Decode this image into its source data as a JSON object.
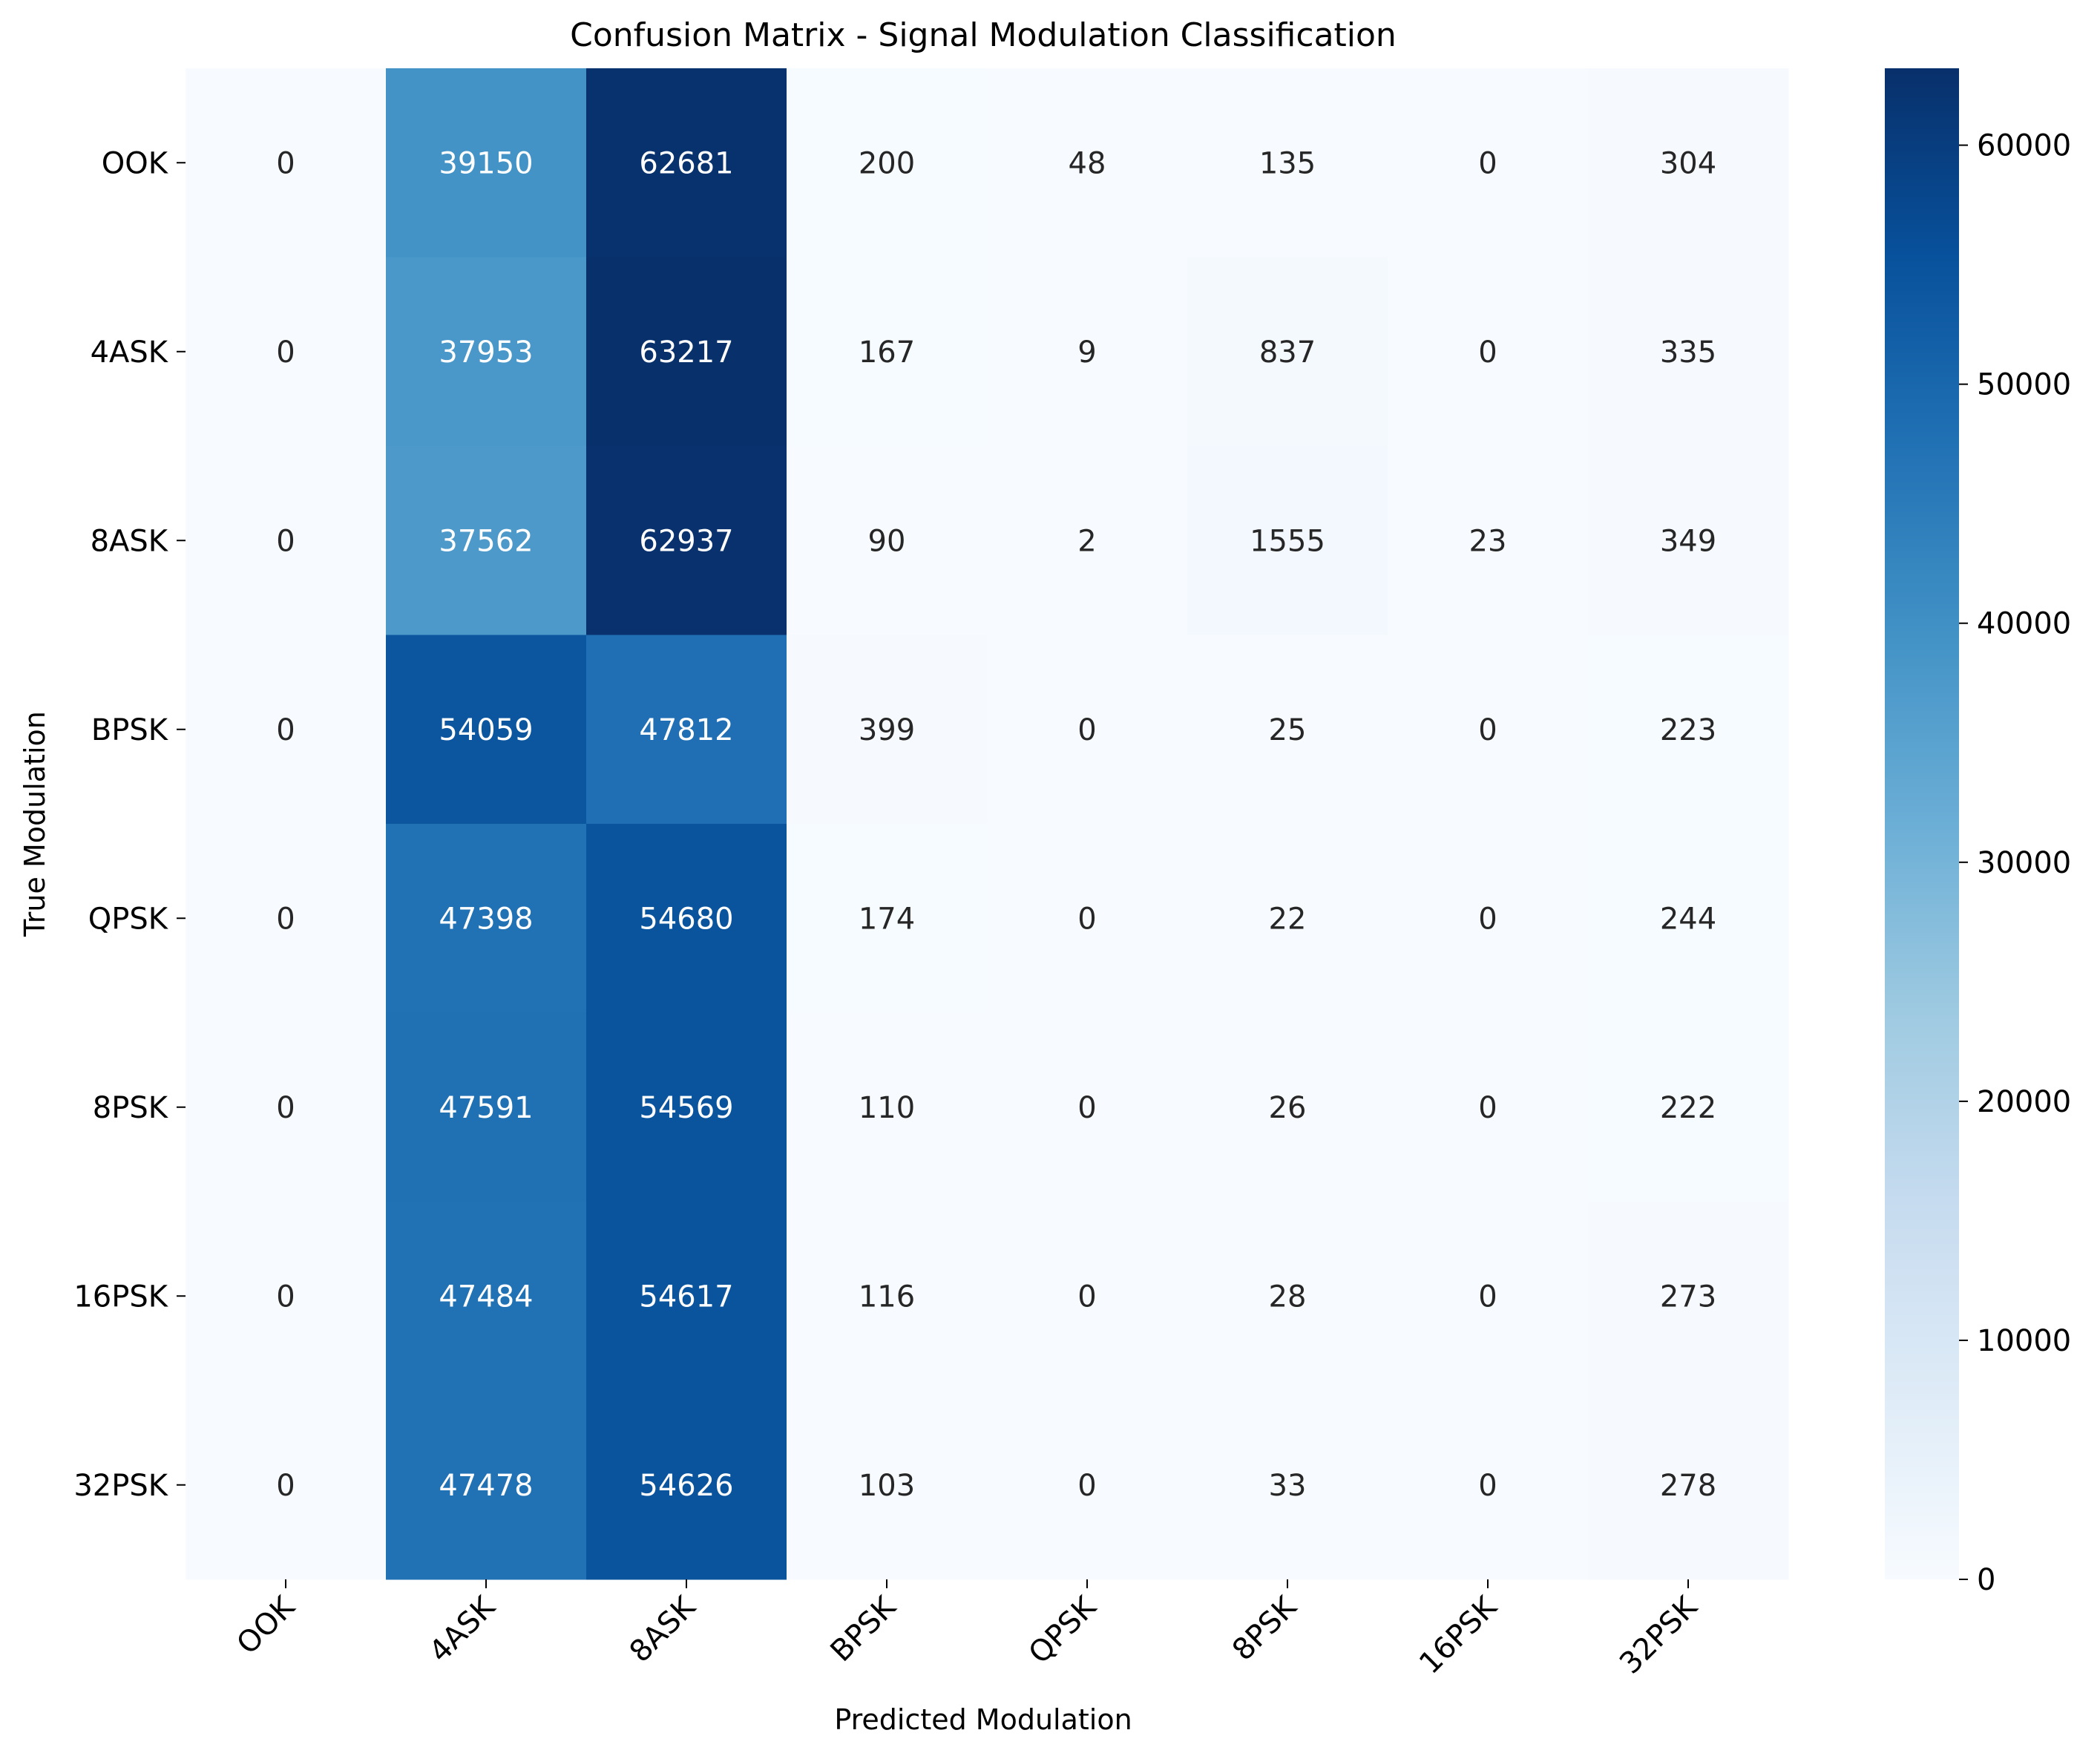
{
  "chart_data": {
    "type": "heatmap",
    "title": "Confusion Matrix - Signal Modulation Classification",
    "xlabel": "Predicted Modulation",
    "ylabel": "True Modulation",
    "x_categories": [
      "OOK",
      "4ASK",
      "8ASK",
      "BPSK",
      "QPSK",
      "8PSK",
      "16PSK",
      "32PSK"
    ],
    "y_categories": [
      "OOK",
      "4ASK",
      "8ASK",
      "BPSK",
      "QPSK",
      "8PSK",
      "16PSK",
      "32PSK"
    ],
    "values": [
      [
        0,
        39150,
        62681,
        200,
        48,
        135,
        0,
        304
      ],
      [
        0,
        37953,
        63217,
        167,
        9,
        837,
        0,
        335
      ],
      [
        0,
        37562,
        62937,
        90,
        2,
        1555,
        23,
        349
      ],
      [
        0,
        54059,
        47812,
        399,
        0,
        25,
        0,
        223
      ],
      [
        0,
        47398,
        54680,
        174,
        0,
        22,
        0,
        244
      ],
      [
        0,
        47591,
        54569,
        110,
        0,
        26,
        0,
        222
      ],
      [
        0,
        47484,
        54617,
        116,
        0,
        28,
        0,
        273
      ],
      [
        0,
        47478,
        54626,
        103,
        0,
        33,
        0,
        278
      ]
    ],
    "colormap": "Blues",
    "colorbar": {
      "range": [
        0,
        63217
      ],
      "ticks": [
        0,
        10000,
        20000,
        30000,
        40000,
        50000,
        60000
      ]
    },
    "text_light": "#ffffff",
    "text_dark": "#262626"
  }
}
